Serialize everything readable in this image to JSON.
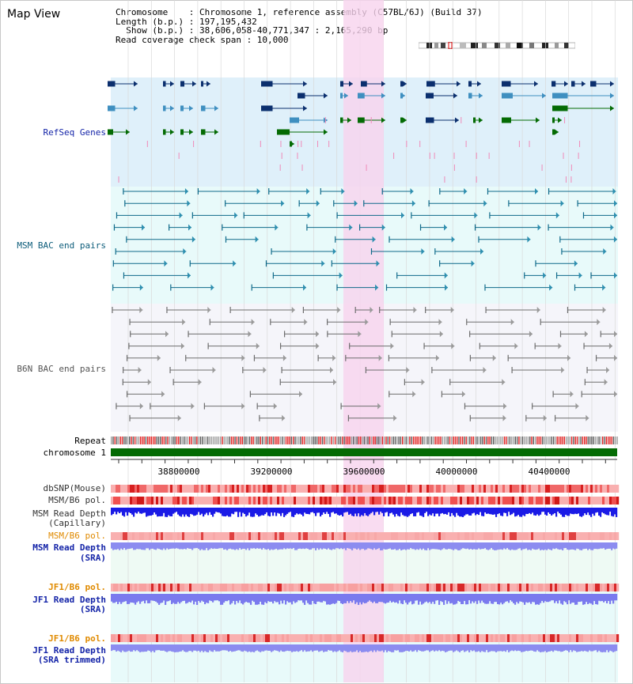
{
  "page": {
    "title": "Map View"
  },
  "header": {
    "chromosome_line": "Chromosome    : Chromosome 1, reference assembly (C57BL/6J) (Build 37)",
    "length_line": "Length (b.p.) : 197,195,432",
    "show_line": "  Show (b.p.) : 38,606,058-40,771,347 : 2,165,290 bp",
    "coverage_line": "Read coverage check span : 10,000"
  },
  "tracks": {
    "refseq": {
      "label": "RefSeq Genes"
    },
    "msm_bac": {
      "label": "MSM BAC end pairs"
    },
    "b6n_bac": {
      "label": "B6N BAC end pairs"
    },
    "repeat": {
      "label": "Repeat"
    },
    "chrom": {
      "label": "chromosome 1"
    },
    "axis_ticks": [
      "38800000",
      "39200000",
      "39600000",
      "40000000",
      "40400000"
    ],
    "dbsnp": {
      "label": "dbSNP(Mouse)"
    },
    "msm_b6_pol_1": {
      "label": "MSM/B6 pol."
    },
    "msm_depth_cap": {
      "label1": "MSM Read Depth",
      "label2": "(Capillary)"
    },
    "msm_b6_pol_2": {
      "label": "MSM/B6 pol."
    },
    "msm_depth_sra": {
      "label1": "MSM Read Depth",
      "label2": "(SRA)"
    },
    "jf1_b6_pol_1": {
      "label": "JF1/B6 pol."
    },
    "jf1_depth_sra": {
      "label1": "JF1 Read Depth",
      "label2": "(SRA)"
    },
    "jf1_b6_pol_2": {
      "label": "JF1/B6 pol."
    },
    "jf1_depth_trim": {
      "label1": "JF1 Read Depth",
      "label2": "(SRA trimmed)"
    }
  },
  "colors": {
    "gene_dark": "#0b2f6e",
    "gene_mid": "#3f8fc0",
    "gene_green": "#046b04",
    "refseq_bg": "#dff0fa",
    "msm_bg": "#e8fafa",
    "b6n_bg": "#f5f5fa",
    "highlight": "#f7d3ee",
    "label_blue": "#1424a8",
    "label_teal": "#0c5c7a",
    "label_gray": "#555555",
    "label_orange": "#e08a00"
  }
}
